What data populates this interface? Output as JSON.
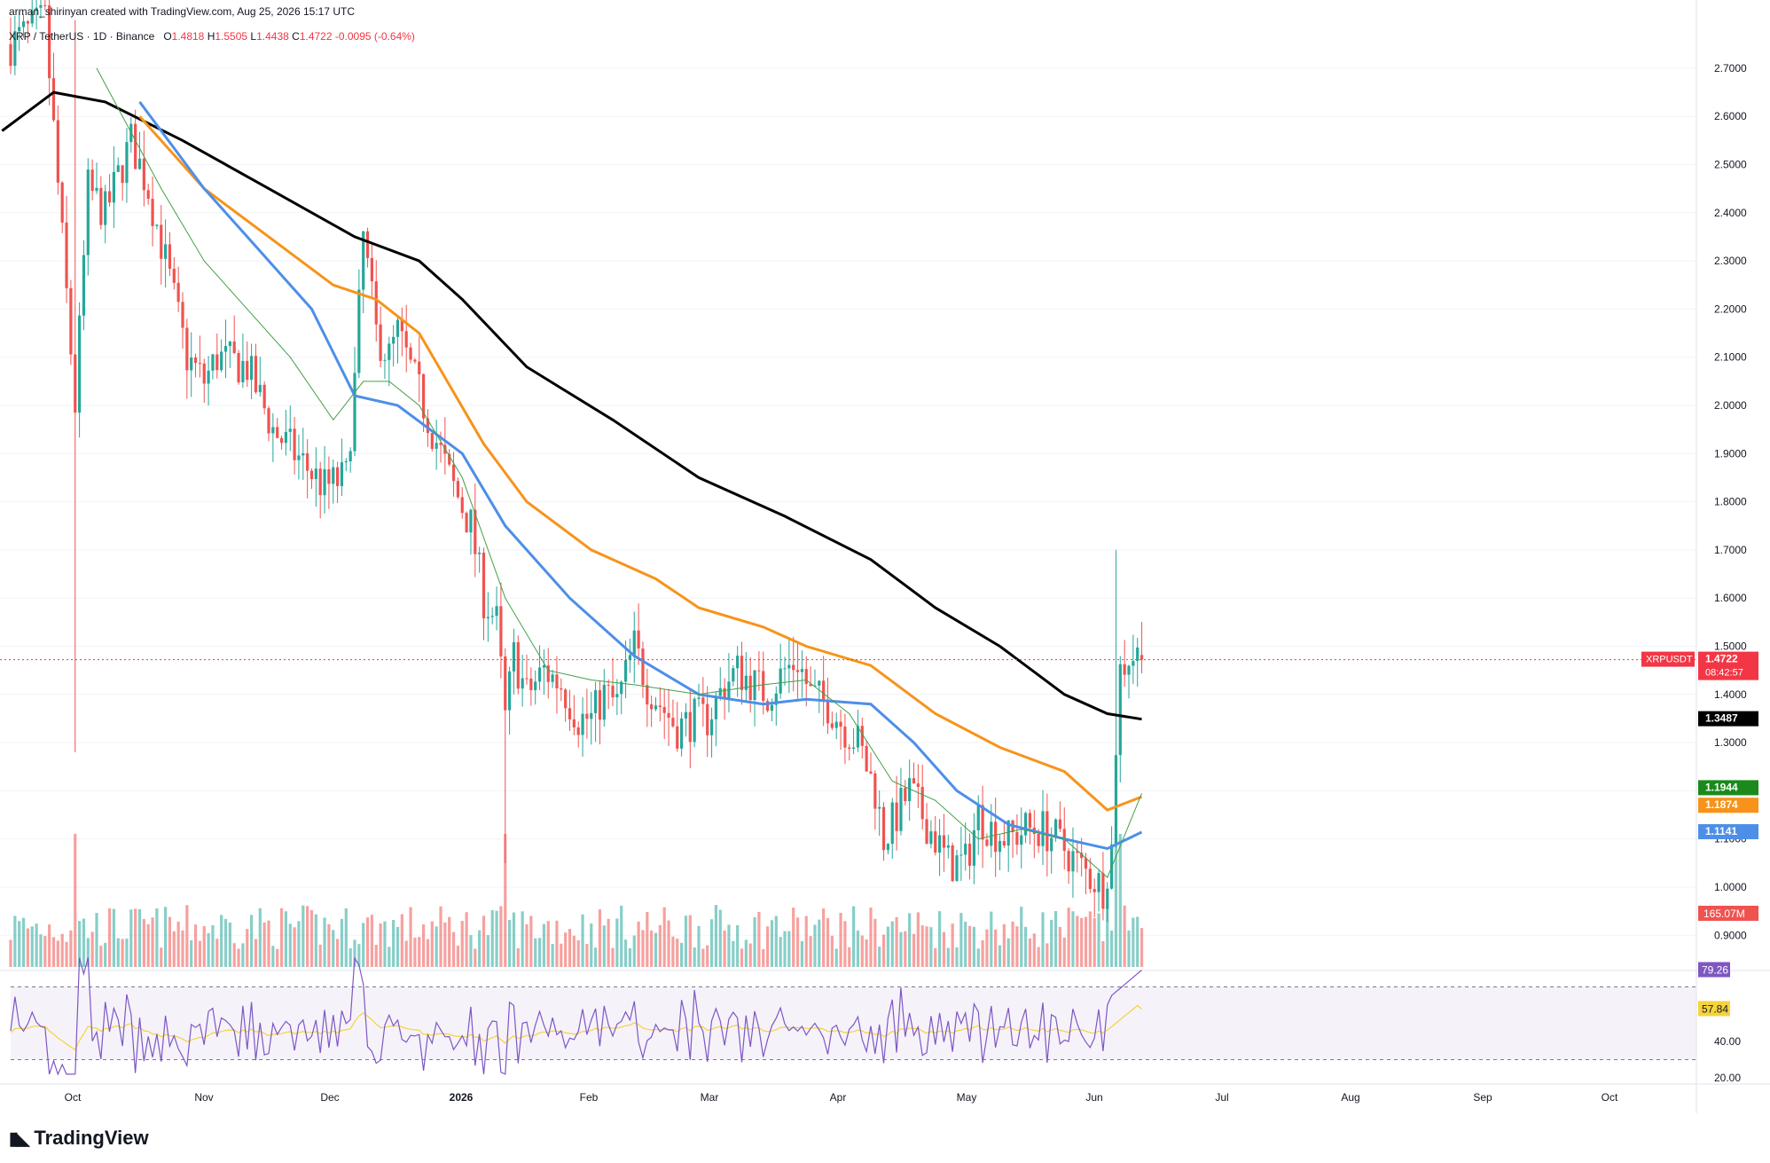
{
  "header": {
    "credit": "arman_shirinyan created with TradingView.com, Aug 25, 2026 15:17 UTC",
    "symbol": "XRP / TetherUS · 1D · Binance",
    "open_label": "O",
    "open": "1.4818",
    "high_label": "H",
    "high": "1.5505",
    "low_label": "L",
    "low": "1.4438",
    "close_label": "C",
    "close": "1.4722",
    "change": "-0.0095 (-0.64%)"
  },
  "branding": {
    "logo_text": "TradingView"
  },
  "colors": {
    "up": "#26a69a",
    "down": "#ef5350",
    "ma_black": "#000000",
    "ma_orange": "#f7931a",
    "ma_blue": "#4d8fe8",
    "ma_green": "#43a047",
    "rsi": "#7e57c2",
    "rsi_ma": "#f5d33c"
  },
  "chart_data": {
    "type": "candlestick",
    "symbol": "XRPUSDT",
    "interval": "1D",
    "price_axis": {
      "ticks": [
        "0.9000",
        "1.0000",
        "1.1000",
        "1.2000",
        "1.3000",
        "1.4000",
        "1.5000",
        "1.6000",
        "1.7000",
        "1.8000",
        "1.9000",
        "2.0000",
        "2.1000",
        "2.2000",
        "2.3000",
        "2.4000",
        "2.5000",
        "2.6000",
        "2.7000"
      ],
      "range": [
        0.83,
        2.8
      ]
    },
    "x_axis": {
      "ticks": [
        "Oct",
        "Nov",
        "Dec",
        "2026",
        "Feb",
        "Mar",
        "Apr",
        "May",
        "Jun",
        "Jul",
        "Aug",
        "Sep",
        "Oct"
      ]
    },
    "price_path_anchors": [
      [
        0,
        2.75
      ],
      [
        8,
        2.8
      ],
      [
        15,
        2.0
      ],
      [
        18,
        2.45
      ],
      [
        22,
        2.4
      ],
      [
        28,
        2.55
      ],
      [
        32,
        2.45
      ],
      [
        36,
        2.3
      ],
      [
        41,
        2.1
      ],
      [
        45,
        2.05
      ],
      [
        48,
        2.1
      ],
      [
        55,
        2.08
      ],
      [
        61,
        1.95
      ],
      [
        66,
        1.9
      ],
      [
        73,
        1.83
      ],
      [
        78,
        1.85
      ],
      [
        80,
        2.05
      ],
      [
        82,
        2.35
      ],
      [
        85,
        2.15
      ],
      [
        88,
        2.1
      ],
      [
        90,
        2.15
      ],
      [
        94,
        2.05
      ],
      [
        98,
        1.95
      ],
      [
        102,
        1.85
      ],
      [
        107,
        1.75
      ],
      [
        110,
        1.6
      ],
      [
        113,
        1.55
      ],
      [
        115,
        1.35
      ],
      [
        117,
        1.48
      ],
      [
        120,
        1.4
      ],
      [
        124,
        1.45
      ],
      [
        128,
        1.42
      ],
      [
        132,
        1.35
      ],
      [
        135,
        1.35
      ],
      [
        138,
        1.4
      ],
      [
        141,
        1.38
      ],
      [
        145,
        1.5
      ],
      [
        148,
        1.42
      ],
      [
        151,
        1.38
      ],
      [
        155,
        1.33
      ],
      [
        159,
        1.35
      ],
      [
        162,
        1.35
      ],
      [
        166,
        1.42
      ],
      [
        169,
        1.45
      ],
      [
        173,
        1.42
      ],
      [
        176,
        1.4
      ],
      [
        180,
        1.45
      ],
      [
        183,
        1.47
      ],
      [
        186,
        1.4
      ],
      [
        190,
        1.38
      ],
      [
        194,
        1.33
      ],
      [
        197,
        1.3
      ],
      [
        201,
        1.2
      ],
      [
        203,
        1.1
      ],
      [
        206,
        1.15
      ],
      [
        209,
        1.2
      ],
      [
        212,
        1.15
      ],
      [
        215,
        1.1
      ],
      [
        218,
        1.05
      ],
      [
        222,
        1.05
      ],
      [
        225,
        1.15
      ],
      [
        228,
        1.12
      ],
      [
        232,
        1.1
      ],
      [
        236,
        1.12
      ],
      [
        240,
        1.12
      ],
      [
        243,
        1.1
      ],
      [
        246,
        1.07
      ],
      [
        250,
        1.03
      ],
      [
        254,
        1.0
      ],
      [
        256,
        1.08
      ],
      [
        257,
        1.3
      ],
      [
        258,
        1.45
      ],
      [
        260,
        1.48
      ],
      [
        262,
        1.4818
      ],
      [
        263,
        1.4722
      ]
    ],
    "moving_averages": [
      {
        "color": "#000000",
        "points": [
          [
            -2,
            2.57
          ],
          [
            10,
            2.65
          ],
          [
            22,
            2.63
          ],
          [
            40,
            2.55
          ],
          [
            60,
            2.45
          ],
          [
            80,
            2.35
          ],
          [
            95,
            2.3
          ],
          [
            105,
            2.22
          ],
          [
            120,
            2.08
          ],
          [
            140,
            1.97
          ],
          [
            160,
            1.85
          ],
          [
            180,
            1.77
          ],
          [
            200,
            1.68
          ],
          [
            215,
            1.58
          ],
          [
            230,
            1.5
          ],
          [
            245,
            1.4
          ],
          [
            255,
            1.36
          ],
          [
            263,
            1.3487
          ]
        ]
      },
      {
        "color": "#f7931a",
        "points": [
          [
            30,
            2.6
          ],
          [
            45,
            2.45
          ],
          [
            60,
            2.35
          ],
          [
            75,
            2.25
          ],
          [
            85,
            2.22
          ],
          [
            95,
            2.15
          ],
          [
            110,
            1.92
          ],
          [
            120,
            1.8
          ],
          [
            135,
            1.7
          ],
          [
            150,
            1.64
          ],
          [
            160,
            1.58
          ],
          [
            175,
            1.54
          ],
          [
            185,
            1.5
          ],
          [
            200,
            1.46
          ],
          [
            215,
            1.36
          ],
          [
            230,
            1.29
          ],
          [
            245,
            1.24
          ],
          [
            255,
            1.16
          ],
          [
            263,
            1.1874
          ]
        ]
      },
      {
        "color": "#4d8fe8",
        "points": [
          [
            30,
            2.63
          ],
          [
            45,
            2.45
          ],
          [
            55,
            2.35
          ],
          [
            70,
            2.2
          ],
          [
            80,
            2.02
          ],
          [
            90,
            2.0
          ],
          [
            105,
            1.9
          ],
          [
            115,
            1.75
          ],
          [
            130,
            1.6
          ],
          [
            145,
            1.48
          ],
          [
            160,
            1.4
          ],
          [
            175,
            1.38
          ],
          [
            185,
            1.39
          ],
          [
            200,
            1.38
          ],
          [
            210,
            1.3
          ],
          [
            220,
            1.2
          ],
          [
            232,
            1.13
          ],
          [
            245,
            1.1
          ],
          [
            255,
            1.08
          ],
          [
            263,
            1.1141
          ]
        ]
      },
      {
        "color": "#43a047",
        "points": [
          [
            20,
            2.7
          ],
          [
            35,
            2.45
          ],
          [
            45,
            2.3
          ],
          [
            55,
            2.2
          ],
          [
            65,
            2.1
          ],
          [
            75,
            1.97
          ],
          [
            82,
            2.05
          ],
          [
            88,
            2.05
          ],
          [
            95,
            2.0
          ],
          [
            105,
            1.85
          ],
          [
            115,
            1.6
          ],
          [
            125,
            1.45
          ],
          [
            135,
            1.43
          ],
          [
            145,
            1.42
          ],
          [
            160,
            1.4
          ],
          [
            175,
            1.42
          ],
          [
            185,
            1.43
          ],
          [
            195,
            1.36
          ],
          [
            205,
            1.22
          ],
          [
            215,
            1.18
          ],
          [
            225,
            1.1
          ],
          [
            235,
            1.12
          ],
          [
            245,
            1.1
          ],
          [
            255,
            1.02
          ],
          [
            263,
            1.1944
          ]
        ]
      }
    ],
    "price_labels": [
      {
        "text": "XRPUSDT",
        "value": "1.4722",
        "countdown": "08:42:57",
        "price": 1.4722,
        "color": "#f23645"
      },
      {
        "value": "1.3487",
        "price": 1.3487,
        "color": "#000000"
      },
      {
        "value": "1.1944",
        "price": 1.1944,
        "color": "#1b8a1b"
      },
      {
        "value": "1.1874",
        "price": 1.1874,
        "color": "#f7931a"
      },
      {
        "value": "1.1141",
        "price": 1.1141,
        "color": "#4d8fe8"
      }
    ],
    "volume": {
      "last_label": "165.07M"
    },
    "rsi": {
      "value_label": "79.26",
      "ma_label": "57.84",
      "value": 79.26,
      "ma": 57.84,
      "ticks": [
        "40.00",
        "20.00"
      ],
      "bands": [
        30,
        70
      ]
    }
  }
}
